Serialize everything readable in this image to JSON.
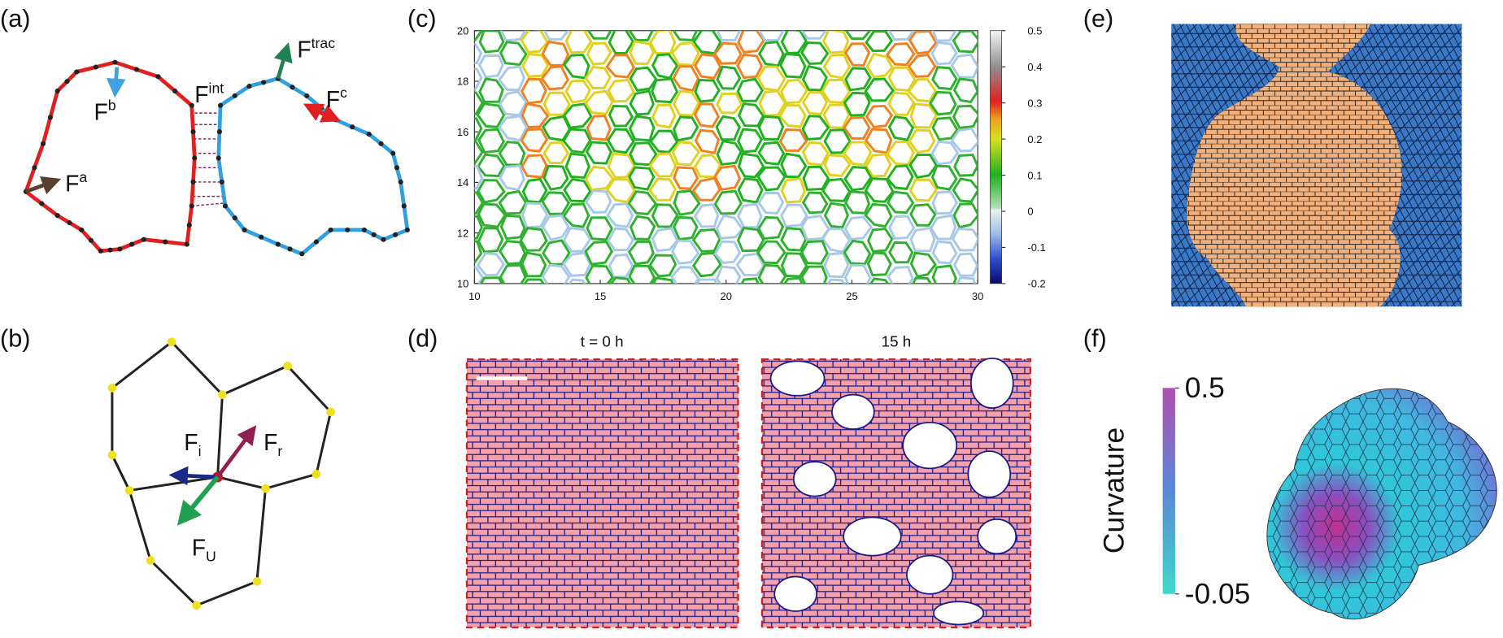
{
  "panel_a": {
    "label": "(a)",
    "forces": [
      {
        "base": "F",
        "sup": "b"
      },
      {
        "base": "F",
        "sup": "int"
      },
      {
        "base": "F",
        "sup": "trac"
      },
      {
        "base": "F",
        "sup": "c"
      },
      {
        "base": "F",
        "sup": "a"
      }
    ]
  },
  "panel_b": {
    "label": "(b)",
    "forces": [
      {
        "base": "F",
        "sub": "i"
      },
      {
        "base": "F",
        "sub": "r"
      },
      {
        "base": "F",
        "sub": "U"
      }
    ]
  },
  "panel_c": {
    "label": "(c)",
    "xlim": [
      10,
      30
    ],
    "xticks": [
      10,
      15,
      20,
      25,
      30
    ],
    "ylim": [
      10,
      20
    ],
    "yticks": [
      10,
      12,
      14,
      16,
      18,
      20
    ],
    "colorbar": {
      "lim": [
        -0.2,
        0.5
      ],
      "ticks": [
        -0.2,
        -0.1,
        0,
        0.1,
        0.2,
        0.3,
        0.4,
        0.5
      ]
    }
  },
  "panel_d": {
    "label": "(d)",
    "titles": [
      "t = 0 h",
      "15 h"
    ]
  },
  "panel_e": {
    "label": "(e)"
  },
  "panel_f": {
    "label": "(f)",
    "colorbar": {
      "title": "Curvature",
      "lim": [
        -0.05,
        0.5
      ],
      "ticks": [
        -0.05,
        0.5
      ]
    }
  }
}
